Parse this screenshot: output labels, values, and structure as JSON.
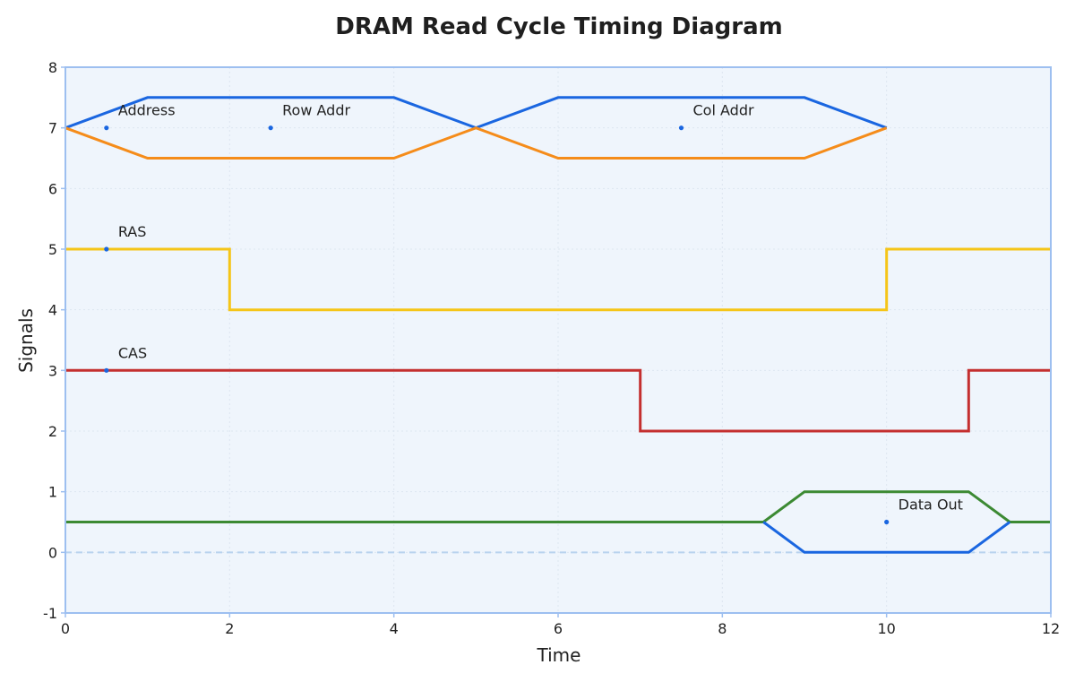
{
  "chart_data": {
    "type": "line",
    "title": "DRAM Read Cycle Timing Diagram",
    "xlabel": "Time",
    "ylabel": "Signals",
    "xlim": [
      0,
      12
    ],
    "ylim": [
      -1,
      8
    ],
    "xticks": [
      "0",
      "2",
      "4",
      "6",
      "8",
      "10",
      "12"
    ],
    "yticks": [
      "-1",
      "0",
      "1",
      "2",
      "3",
      "4",
      "5",
      "6",
      "7",
      "8"
    ],
    "grid": true,
    "reference_line": {
      "y": 0,
      "style": "dashed",
      "color": "#b9d3ee"
    },
    "colors": {
      "address_upper": "#1a66e0",
      "address_lower": "#f58c1a",
      "ras": "#f5c518",
      "cas": "#c42f2f",
      "data_upper": "#3c8a33",
      "data_lower": "#1a66e0",
      "plot_background": "#eff5fc",
      "plot_border": "#9dbff0",
      "marker": "#1a66e0"
    },
    "series": [
      {
        "key": "address_upper",
        "x": [
          0,
          1,
          4,
          5,
          6,
          9,
          10
        ],
        "y": [
          7,
          7.5,
          7.5,
          7,
          7.5,
          7.5,
          7
        ]
      },
      {
        "key": "address_lower",
        "x": [
          0,
          1,
          4,
          5,
          6,
          9,
          10
        ],
        "y": [
          7,
          6.5,
          6.5,
          7,
          6.5,
          6.5,
          7
        ]
      },
      {
        "key": "ras",
        "x": [
          0,
          2,
          2,
          10,
          10,
          12
        ],
        "y": [
          5,
          5,
          4,
          4,
          5,
          5
        ]
      },
      {
        "key": "cas",
        "x": [
          0,
          7,
          7,
          11,
          11,
          12
        ],
        "y": [
          3,
          3,
          2,
          2,
          3,
          3
        ]
      },
      {
        "key": "data_upper",
        "x": [
          0,
          8.5,
          9,
          11,
          11.5,
          12
        ],
        "y": [
          0.5,
          0.5,
          1,
          1,
          0.5,
          0.5
        ]
      },
      {
        "key": "data_lower",
        "x": [
          8.5,
          9,
          11,
          11.5
        ],
        "y": [
          0.5,
          0,
          0,
          0.5
        ]
      }
    ],
    "annotations": [
      {
        "text": "Address",
        "x": 0.5,
        "y": 7
      },
      {
        "text": "Row Addr",
        "x": 2.5,
        "y": 7
      },
      {
        "text": "Col Addr",
        "x": 7.5,
        "y": 7
      },
      {
        "text": "RAS",
        "x": 0.5,
        "y": 5
      },
      {
        "text": "CAS",
        "x": 0.5,
        "y": 3
      },
      {
        "text": "Data Out",
        "x": 10,
        "y": 0.5
      }
    ]
  }
}
